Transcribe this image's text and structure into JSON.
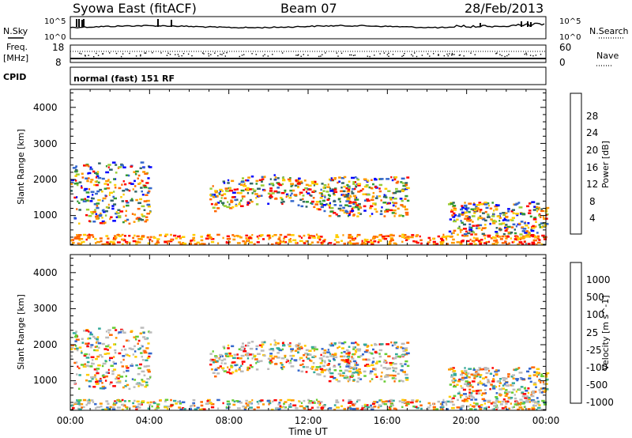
{
  "header": {
    "station": "Syowa East (fitACF)",
    "beam": "Beam 07",
    "date": "28/Feb/2013"
  },
  "top_panel": {
    "left_label": "N.Sky",
    "right_label": "N.Search",
    "left_ticks": [
      "10^5",
      "10^0"
    ],
    "right_ticks": [
      "10^5",
      "10^0"
    ]
  },
  "freq_panel": {
    "left_label_1": "Freq.",
    "left_label_2": "[MHz]",
    "left_ticks": [
      "18",
      "8"
    ],
    "right_label": "Nave",
    "right_ticks": [
      "60",
      "0"
    ]
  },
  "cpid_panel": {
    "label": "CPID",
    "mode_text": "normal (fast) 151 RF"
  },
  "power_panel": {
    "ylabel": "Slant Range [km]",
    "yticks": [
      "4000",
      "3000",
      "2000",
      "1000"
    ],
    "cbar_label": "Power [dB]",
    "cbar_ticks": [
      "28",
      "24",
      "20",
      "16",
      "12",
      "8",
      "4"
    ],
    "cbar_colors": [
      "#ff0000",
      "#ff3300",
      "#ff6600",
      "#ff9900",
      "#ffcc00",
      "#99cc33",
      "#339933",
      "#336666",
      "#3366cc",
      "#0000ff"
    ]
  },
  "velocity_panel": {
    "ylabel": "Slant Range [km]",
    "yticks": [
      "4000",
      "3000",
      "2000",
      "1000"
    ],
    "cbar_label": "Velocity [m s^-1]",
    "cbar_ticks": [
      "1000",
      "500",
      "100",
      "25",
      "-25",
      "-100",
      "-500",
      "-1000"
    ],
    "cbar_colors": [
      "#1a3399",
      "#3366cc",
      "#33aa99",
      "#66cc33",
      "#bbbbbb",
      "#bbbbbb",
      "#ffcc00",
      "#ff9900",
      "#ff6600",
      "#ff0000"
    ]
  },
  "xaxis": {
    "ticks": [
      "00:00",
      "04:00",
      "08:00",
      "12:00",
      "16:00",
      "20:00",
      "00:00"
    ],
    "label": "Time UT"
  },
  "chart_data": {
    "type": "heatmap",
    "title": "Syowa East (fitACF) Beam 07 28/Feb/2013",
    "xlabel": "Time UT",
    "ylabel": "Slant Range [km]",
    "x_range_hours": [
      0,
      24
    ],
    "y_range_km": [
      180,
      4500
    ],
    "power_colorbar_db": [
      4,
      8,
      12,
      16,
      20,
      24,
      28
    ],
    "velocity_colorbar_ms": [
      -1000,
      -500,
      -100,
      -25,
      25,
      100,
      500,
      1000
    ],
    "approx_echo_regions": [
      {
        "name": "near-range band",
        "t_start_h": 0,
        "t_end_h": 24,
        "range_km": [
          200,
          500
        ]
      },
      {
        "name": "early band",
        "t_start_h": 0,
        "t_end_h": 4,
        "range_km": [
          800,
          2500
        ]
      },
      {
        "name": "arc",
        "t_start_h": 7,
        "t_end_h": 13,
        "range_km": [
          1100,
          1900
        ]
      },
      {
        "name": "afternoon band",
        "t_start_h": 13,
        "t_end_h": 17,
        "range_km": [
          1000,
          2100
        ]
      },
      {
        "name": "evening band",
        "t_start_h": 19,
        "t_end_h": 24,
        "range_km": [
          500,
          1400
        ]
      }
    ]
  }
}
